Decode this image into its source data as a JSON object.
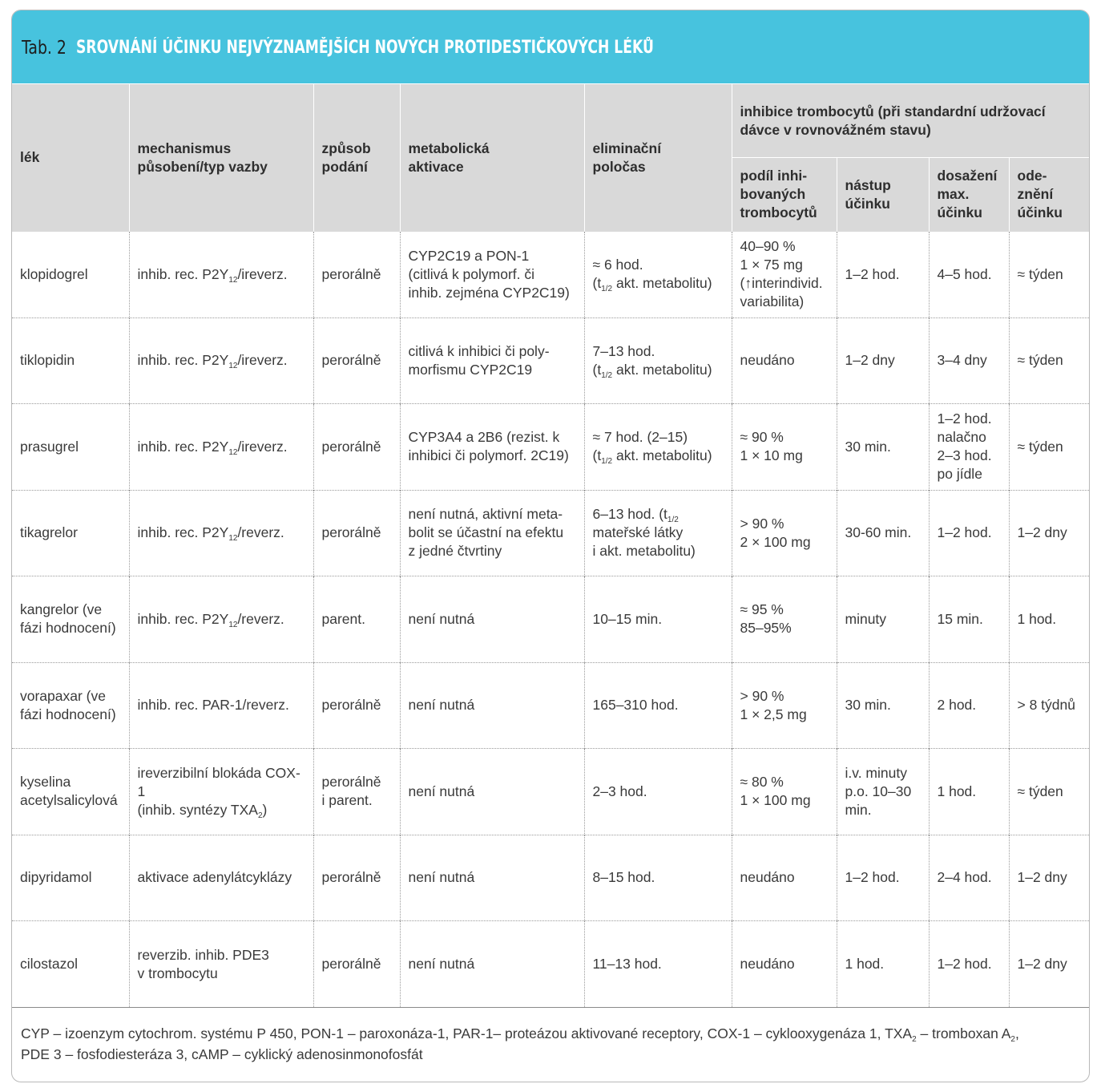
{
  "header": {
    "tab_label": "Tab. 2",
    "title": "SROVNÁNÍ ÚČINKU NEJVÝZNAMĚJŠÍCH NOVÝCH PROTIDESTIČKOVÝCH LÉKŮ"
  },
  "columns": {
    "lek": "lék",
    "mechanismus": "mechanismus\npůsobení/typ vazby",
    "zpusob": "způsob\npodání",
    "metabolicka": "metabolická\naktivace",
    "eliminacni": "eliminační\npoločas",
    "inhibice_group": "inhibice trombocytů (při standardní udržovací dávce v rovnovážném stavu)",
    "podil": "podíl inhi-\nbovaných\ntrombocytů",
    "nastup": "nástup\núčinku",
    "dosazeni": "dosažení\nmax.\núčinku",
    "odezneni": "ode-\nznění\núčinku"
  },
  "rows": [
    {
      "lek": "klopidogrel",
      "mech": [
        "inhib. rec. P2Y",
        "12",
        "/ireverz."
      ],
      "zpusob": "perorálně",
      "meta": "CYP2C19 a PON-1\n(citlivá k polymorf. či\ninhib. zejména CYP2C19)",
      "elim": [
        "≈ 6 hod.",
        "(t",
        "1/2",
        " akt. metabolitu)"
      ],
      "podil": "40–90 %\n1 × 75 mg\n(↑interindivid.\nvariabilita)",
      "nastup": "1–2 hod.",
      "dosazeni": "4–5 hod.",
      "odezneni": "≈ týden"
    },
    {
      "lek": "tiklopidin",
      "mech": [
        "inhib. rec. P2Y",
        "12",
        "/ireverz."
      ],
      "zpusob": "perorálně",
      "meta": "citlivá k inhibici či poly-\nmorfismu CYP2C19",
      "elim": [
        "7–13 hod.",
        "(t",
        "1/2",
        " akt. metabolitu)"
      ],
      "podil": "neudáno",
      "nastup": "1–2 dny",
      "dosazeni": "3–4 dny",
      "odezneni": "≈ týden"
    },
    {
      "lek": "prasugrel",
      "mech": [
        "inhib. rec. P2Y",
        "12",
        "/ireverz."
      ],
      "zpusob": "perorálně",
      "meta": "CYP3A4 a 2B6 (rezist. k\ninhibici či polymorf. 2C19)",
      "elim": [
        "≈ 7 hod. (2–15)",
        "(t",
        "1/2",
        " akt. metabolitu)"
      ],
      "podil": "≈ 90 %\n1 × 10 mg",
      "nastup": "30 min.",
      "dosazeni": "1–2 hod.\nnalačno\n2–3 hod.\npo jídle",
      "odezneni": "≈ týden"
    },
    {
      "lek": "tikagrelor",
      "mech": [
        "inhib. rec. P2Y",
        "12",
        "/reverz."
      ],
      "zpusob": "perorálně",
      "meta": "není nutná, aktivní meta-\nbolit se účastní na efektu\nz jedné čtvrtiny",
      "elim2": [
        "6–13 hod. (t",
        "1/2",
        "mateřské látky\ni akt. metabolitu)"
      ],
      "podil": "> 90 %\n2 × 100 mg",
      "nastup": "30-60 min.",
      "dosazeni": "1–2 hod.",
      "odezneni": "1–2 dny"
    },
    {
      "lek": "kangrelor (ve\nfázi hodnocení)",
      "mech": [
        "inhib. rec. P2Y",
        "12",
        "/reverz."
      ],
      "zpusob": "parent.",
      "meta": "není nutná",
      "elim_text": "10–15 min.",
      "podil": "≈ 95 %\n85–95%",
      "nastup": "minuty",
      "dosazeni": "15 min.",
      "odezneni": "1 hod."
    },
    {
      "lek": "vorapaxar (ve\nfázi hodnocení)",
      "mech_text": "inhib. rec. PAR-1/reverz.",
      "zpusob": "perorálně",
      "meta": "není nutná",
      "elim_text": "165–310 hod.",
      "podil": "> 90 %\n1 × 2,5 mg",
      "nastup": "30 min.",
      "dosazeni": "2 hod.",
      "odezneni": "> 8 týdnů"
    },
    {
      "lek": "kyselina\nacetylsalicylová",
      "mech_asa": [
        "ireverzibilní blokáda COX-1",
        "(inhib. syntézy TXA",
        "2",
        ")"
      ],
      "zpusob": "perorálně\ni parent.",
      "meta": "není nutná",
      "elim_text": "2–3 hod.",
      "podil": "≈ 80 %\n1 × 100 mg",
      "nastup": "i.v. minuty\np.o. 10–30\nmin.",
      "dosazeni": "1 hod.",
      "odezneni": "≈ týden"
    },
    {
      "lek": "dipyridamol",
      "mech_text": "aktivace adenylátcyklázy",
      "zpusob": "perorálně",
      "meta": "není nutná",
      "elim_text": "8–15 hod.",
      "podil": "neudáno",
      "nastup": "1–2 hod.",
      "dosazeni": "2–4 hod.",
      "odezneni": "1–2 dny"
    },
    {
      "lek": "cilostazol",
      "mech_text": "reverzib. inhib. PDE3\nv trombocytu",
      "zpusob": "perorálně",
      "meta": "není nutná",
      "elim_text": "11–13 hod.",
      "podil": "neudáno",
      "nastup": "1 hod.",
      "dosazeni": "1–2 hod.",
      "odezneni": "1–2 dny"
    }
  ],
  "footnote": {
    "part1": "CYP – izoenzym cytochrom. systému P 450, PON-1 – paroxonáza-1, PAR-1– proteázou aktivované receptory, COX-1 – cyklooxygenáza 1, TXA",
    "sub1": "2",
    "part2": " – tromboxan A",
    "sub2": "2",
    "part3": ",",
    "line2": "PDE 3 – fosfodiesteráza 3, cAMP – cyklický adenosinmonofosfát"
  }
}
